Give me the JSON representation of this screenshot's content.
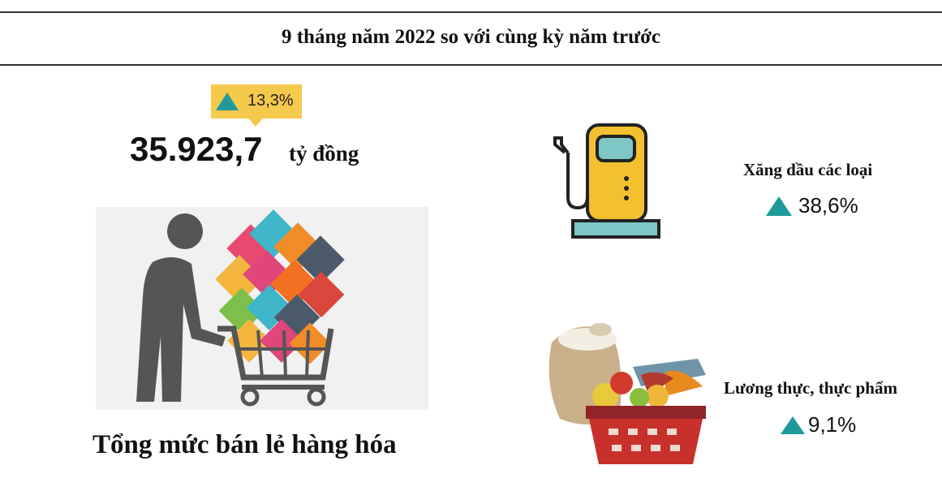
{
  "header": {
    "title": "9 tháng năm 2022 so với cùng kỳ năm trước"
  },
  "summary": {
    "growth": "13,3%",
    "total_value": "35.923,7",
    "total_unit": "tỷ đồng",
    "label": "Tổng mức bán lẻ hàng hóa"
  },
  "categories": [
    {
      "label": "Xăng dầu các loại",
      "growth": "38,6%",
      "icon": "fuel-pump-icon"
    },
    {
      "label": "Lương thực, thực phẩm",
      "growth": "9,1%",
      "icon": "food-basket-icon"
    }
  ],
  "colors": {
    "accent": "#1f9a9a",
    "badge": "#f4c94c",
    "figure": "#555555"
  }
}
